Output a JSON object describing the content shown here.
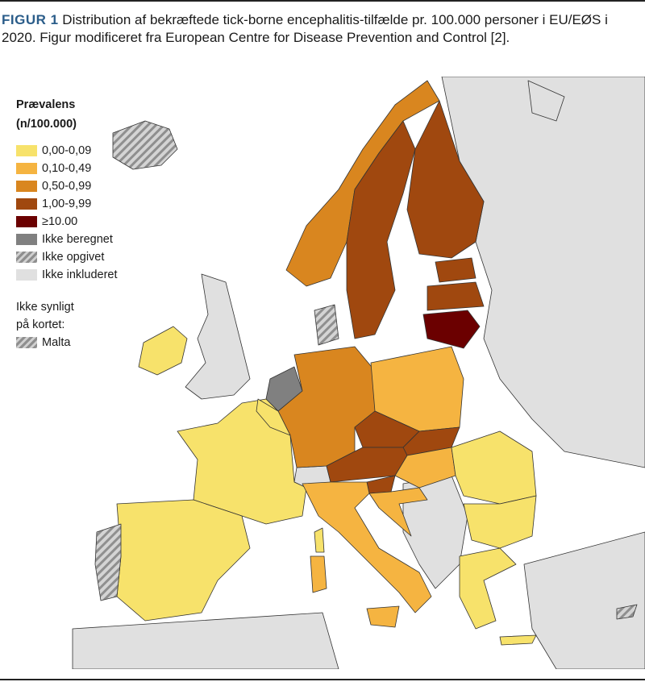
{
  "caption": {
    "label": "FIGUR 1",
    "text": "Distribution af bekræftede tick-borne encephalitis-tilfælde pr. 100.000 personer i EU/EØS i 2020. Figur modificeret fra European Centre for Disease Prevention and Control [2]."
  },
  "legend": {
    "title_line1": "Prævalens",
    "title_line2": "(n/100.000)",
    "items": [
      {
        "label": "0,00-0,09",
        "color": "#f7e26b"
      },
      {
        "label": "0,10-0,49",
        "color": "#f5b441"
      },
      {
        "label": "0,50-0,99",
        "color": "#d9861f"
      },
      {
        "label": "1,00-9,99",
        "color": "#a0480f"
      },
      {
        "label": "≥10.00",
        "color": "#6b0000"
      },
      {
        "label": "Ikke beregnet",
        "color": "#808080"
      },
      {
        "label": "Ikke opgivet",
        "color": "hatch"
      },
      {
        "label": "Ikke inkluderet",
        "color": "#e0e0e0"
      }
    ],
    "note_line1": "Ikke synligt",
    "note_line2": "på kortet:",
    "note_item": "Malta"
  },
  "colors": {
    "water": "#ffffff",
    "border": "#333333"
  }
}
